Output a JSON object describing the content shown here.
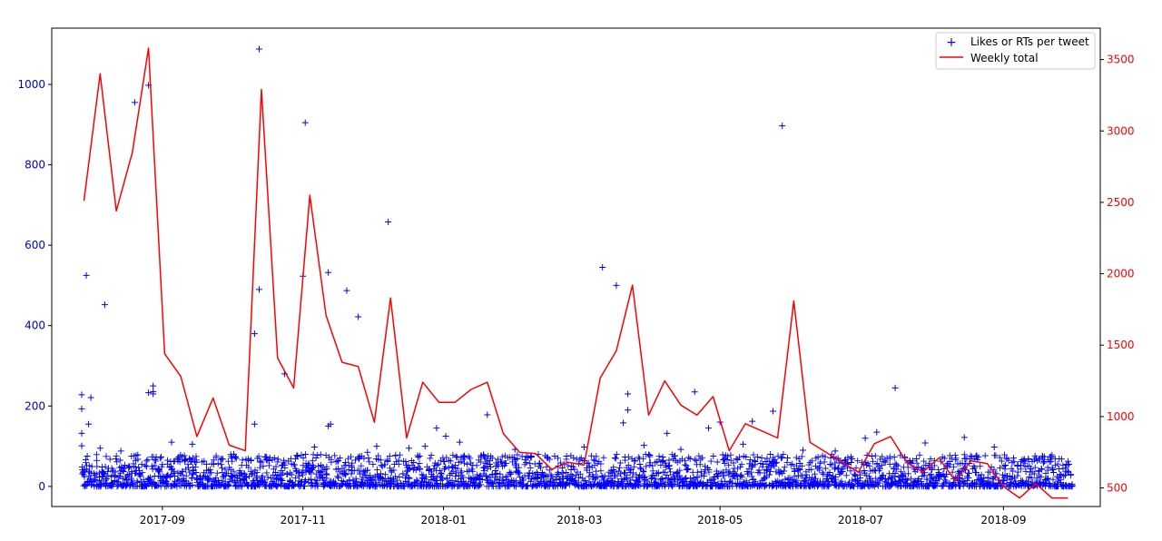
{
  "chart_data": {
    "type": "scatter+line",
    "x_axis": {
      "type": "date",
      "range": [
        "2017-07-15",
        "2018-10-13"
      ],
      "ticks": [
        "2017-09-01",
        "2017-11-01",
        "2018-01-01",
        "2018-03-01",
        "2018-05-01",
        "2018-07-01",
        "2018-09-01"
      ],
      "tick_labels": [
        "2017-09",
        "2017-11",
        "2018-01",
        "2018-03",
        "2018-05",
        "2018-07",
        "2018-09"
      ]
    },
    "y_left": {
      "range": [
        -50,
        1140
      ],
      "ticks": [
        0,
        200,
        400,
        600,
        800,
        1000
      ],
      "color": "#0000cc"
    },
    "y_right": {
      "range": [
        370,
        3720
      ],
      "ticks": [
        500,
        1000,
        1500,
        2000,
        2500,
        3000,
        3500
      ],
      "color": "#ff0000"
    },
    "legend": {
      "position": "top-right",
      "entries": [
        {
          "label": "Likes or RTs per tweet",
          "marker": "plus",
          "color": "#0000ff"
        },
        {
          "label": "Weekly total",
          "marker": "line",
          "color": "#ff0000"
        }
      ]
    },
    "series": [
      {
        "name": "Weekly total",
        "kind": "line",
        "axis": "right",
        "color": "#ff0000",
        "x": [
          "2017-07-29",
          "2017-08-05",
          "2017-08-12",
          "2017-08-19",
          "2017-08-26",
          "2017-09-02",
          "2017-09-09",
          "2017-09-16",
          "2017-09-23",
          "2017-09-30",
          "2017-10-07",
          "2017-10-14",
          "2017-10-21",
          "2017-10-28",
          "2017-11-04",
          "2017-11-11",
          "2017-11-18",
          "2017-11-25",
          "2017-12-02",
          "2017-12-09",
          "2017-12-16",
          "2017-12-23",
          "2017-12-30",
          "2018-01-06",
          "2018-01-13",
          "2018-01-20",
          "2018-01-27",
          "2018-02-03",
          "2018-02-10",
          "2018-02-17",
          "2018-02-24",
          "2018-03-03",
          "2018-03-10",
          "2018-03-17",
          "2018-03-24",
          "2018-03-31",
          "2018-04-07",
          "2018-04-14",
          "2018-04-21",
          "2018-04-28",
          "2018-05-05",
          "2018-05-12",
          "2018-05-19",
          "2018-05-26",
          "2018-06-02",
          "2018-06-09",
          "2018-06-16",
          "2018-06-23",
          "2018-06-30",
          "2018-07-07",
          "2018-07-14",
          "2018-07-21",
          "2018-07-28",
          "2018-08-04",
          "2018-08-11",
          "2018-08-18",
          "2018-08-25",
          "2018-09-01",
          "2018-09-08",
          "2018-09-15",
          "2018-09-22",
          "2018-09-29"
        ],
        "values": [
          2510,
          3400,
          2440,
          2850,
          3580,
          1440,
          1280,
          860,
          1130,
          800,
          760,
          3290,
          1410,
          1200,
          2550,
          1710,
          1380,
          1350,
          960,
          1830,
          850,
          1240,
          1100,
          1100,
          1190,
          1240,
          880,
          750,
          740,
          630,
          680,
          660,
          1270,
          1460,
          1920,
          1010,
          1250,
          1080,
          1010,
          1140,
          760,
          950,
          900,
          850,
          1810,
          820,
          750,
          680,
          610,
          810,
          860,
          680,
          610,
          710,
          550,
          690,
          670,
          510,
          430,
          530,
          430,
          430
        ]
      },
      {
        "name": "Likes or RTs per tweet",
        "kind": "scatter",
        "axis": "left",
        "color": "#0000ff",
        "marker": "plus",
        "points": [
          [
            "2017-07-28",
            193
          ],
          [
            "2017-07-28",
            228
          ],
          [
            "2017-07-28",
            132
          ],
          [
            "2017-07-28",
            101
          ],
          [
            "2017-07-30",
            525
          ],
          [
            "2017-07-31",
            155
          ],
          [
            "2017-08-01",
            221
          ],
          [
            "2017-08-07",
            452
          ],
          [
            "2017-08-20",
            955
          ],
          [
            "2017-08-26",
            998
          ],
          [
            "2017-08-26",
            233
          ],
          [
            "2017-08-28",
            236
          ],
          [
            "2017-08-28",
            250
          ],
          [
            "2017-08-28",
            230
          ],
          [
            "2017-10-11",
            380
          ],
          [
            "2017-10-11",
            155
          ],
          [
            "2017-10-13",
            1088
          ],
          [
            "2017-10-13",
            490
          ],
          [
            "2017-10-24",
            280
          ],
          [
            "2017-11-01",
            523
          ],
          [
            "2017-11-02",
            905
          ],
          [
            "2017-11-12",
            532
          ],
          [
            "2017-11-12",
            150
          ],
          [
            "2017-11-13",
            155
          ],
          [
            "2017-11-20",
            487
          ],
          [
            "2017-11-25",
            422
          ],
          [
            "2017-12-08",
            658
          ],
          [
            "2017-12-29",
            145
          ],
          [
            "2018-01-20",
            178
          ],
          [
            "2018-03-11",
            545
          ],
          [
            "2018-03-17",
            500
          ],
          [
            "2018-03-20",
            158
          ],
          [
            "2018-03-22",
            230
          ],
          [
            "2018-03-22",
            190
          ],
          [
            "2018-04-20",
            235
          ],
          [
            "2018-04-26",
            145
          ],
          [
            "2018-05-01",
            160
          ],
          [
            "2018-05-15",
            162
          ],
          [
            "2018-05-24",
            187
          ],
          [
            "2018-05-28",
            897
          ],
          [
            "2018-07-16",
            245
          ],
          [
            "2017-08-05",
            95
          ],
          [
            "2017-08-14",
            88
          ],
          [
            "2017-09-05",
            110
          ],
          [
            "2017-09-14",
            105
          ],
          [
            "2017-10-02",
            80
          ],
          [
            "2017-11-06",
            98
          ],
          [
            "2017-12-03",
            100
          ],
          [
            "2017-12-17",
            95
          ],
          [
            "2018-01-08",
            110
          ],
          [
            "2018-02-01",
            92
          ],
          [
            "2018-03-03",
            98
          ],
          [
            "2018-03-29",
            102
          ],
          [
            "2018-04-08",
            132
          ],
          [
            "2018-05-11",
            105
          ],
          [
            "2018-06-06",
            90
          ],
          [
            "2018-07-03",
            120
          ],
          [
            "2018-07-29",
            108
          ],
          [
            "2018-08-15",
            122
          ],
          [
            "2018-08-28",
            98
          ],
          [
            "2018-09-10",
            68
          ],
          [
            "2018-09-18",
            75
          ],
          [
            "2018-07-08",
            135
          ],
          [
            "2018-06-20",
            88
          ],
          [
            "2018-04-14",
            92
          ],
          [
            "2018-02-15",
            72
          ],
          [
            "2018-01-02",
            125
          ],
          [
            "2017-12-24",
            100
          ],
          [
            "2017-11-29",
            85
          ]
        ],
        "cluster": {
          "x_range": [
            "2017-07-28",
            "2018-09-30"
          ],
          "value_range": [
            0,
            80
          ],
          "points_per_day": 7
        }
      }
    ]
  }
}
